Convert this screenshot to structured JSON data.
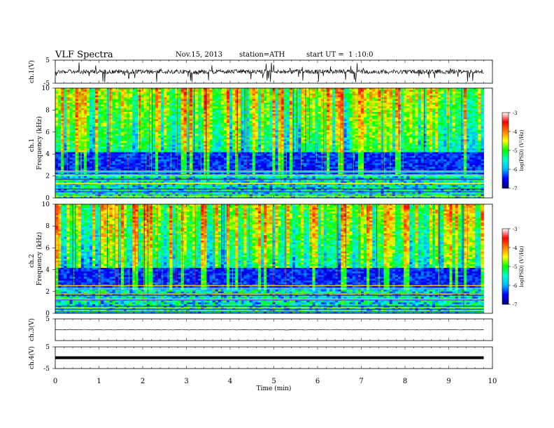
{
  "header": {
    "title": "VLF Spectra",
    "date": "Nov.15, 2013",
    "station": "station=ATH",
    "start": "start UT =  1 :10:0"
  },
  "chart_data": [
    {
      "type": "line",
      "ylabel": "ch.1(V)",
      "ylim": [
        -5,
        5
      ],
      "yticks": [
        "5",
        "-5"
      ],
      "description_values": {
        "baseline": 0,
        "spike_max": 5,
        "spike_min": -5
      }
    },
    {
      "type": "heatmap",
      "ylabel": "Frequency (kHz)",
      "channel": "ch.1",
      "ylim": [
        0,
        10
      ],
      "yticks": [
        "0",
        "2",
        "4",
        "6",
        "8",
        "10"
      ],
      "colorbar": {
        "label": "log(PSD) (V²/Hz)",
        "range": [
          -7,
          -3
        ],
        "ticks": [
          "-3",
          "-4",
          "-5",
          "-6",
          "-7"
        ]
      }
    },
    {
      "type": "heatmap",
      "ylabel": "Frequency (kHz)",
      "channel": "ch.2",
      "ylim": [
        0,
        10
      ],
      "yticks": [
        "0",
        "2",
        "4",
        "6",
        "8",
        "10"
      ],
      "colorbar": {
        "label": "log(PSD) (V²/Hz)",
        "range": [
          -7,
          -3
        ],
        "ticks": [
          "-3",
          "-4",
          "-5",
          "-6",
          "-7"
        ]
      }
    },
    {
      "type": "line",
      "ylabel": "ch.3(V)",
      "ylim": [
        -5,
        5
      ],
      "yticks": [
        "5"
      ],
      "description_values": {
        "baseline": 0
      }
    },
    {
      "type": "line",
      "ylabel": "ch.4(V)",
      "ylim": [
        -5,
        5
      ],
      "yticks": [
        "5",
        "-5"
      ],
      "description_values": {
        "baseline": 0
      }
    }
  ],
  "x_axis": {
    "label": "Time (min)",
    "xlim": [
      0,
      10
    ],
    "ticks": [
      "0",
      "1",
      "2",
      "3",
      "4",
      "5",
      "6",
      "7",
      "8",
      "9",
      "10"
    ],
    "data_end": 9.8
  },
  "colors": {
    "scale": [
      "#00007a",
      "#0000ff",
      "#00b4ff",
      "#00ffd2",
      "#00ff00",
      "#ffff00",
      "#ff8000",
      "#ff0000",
      "#ffffff"
    ]
  }
}
